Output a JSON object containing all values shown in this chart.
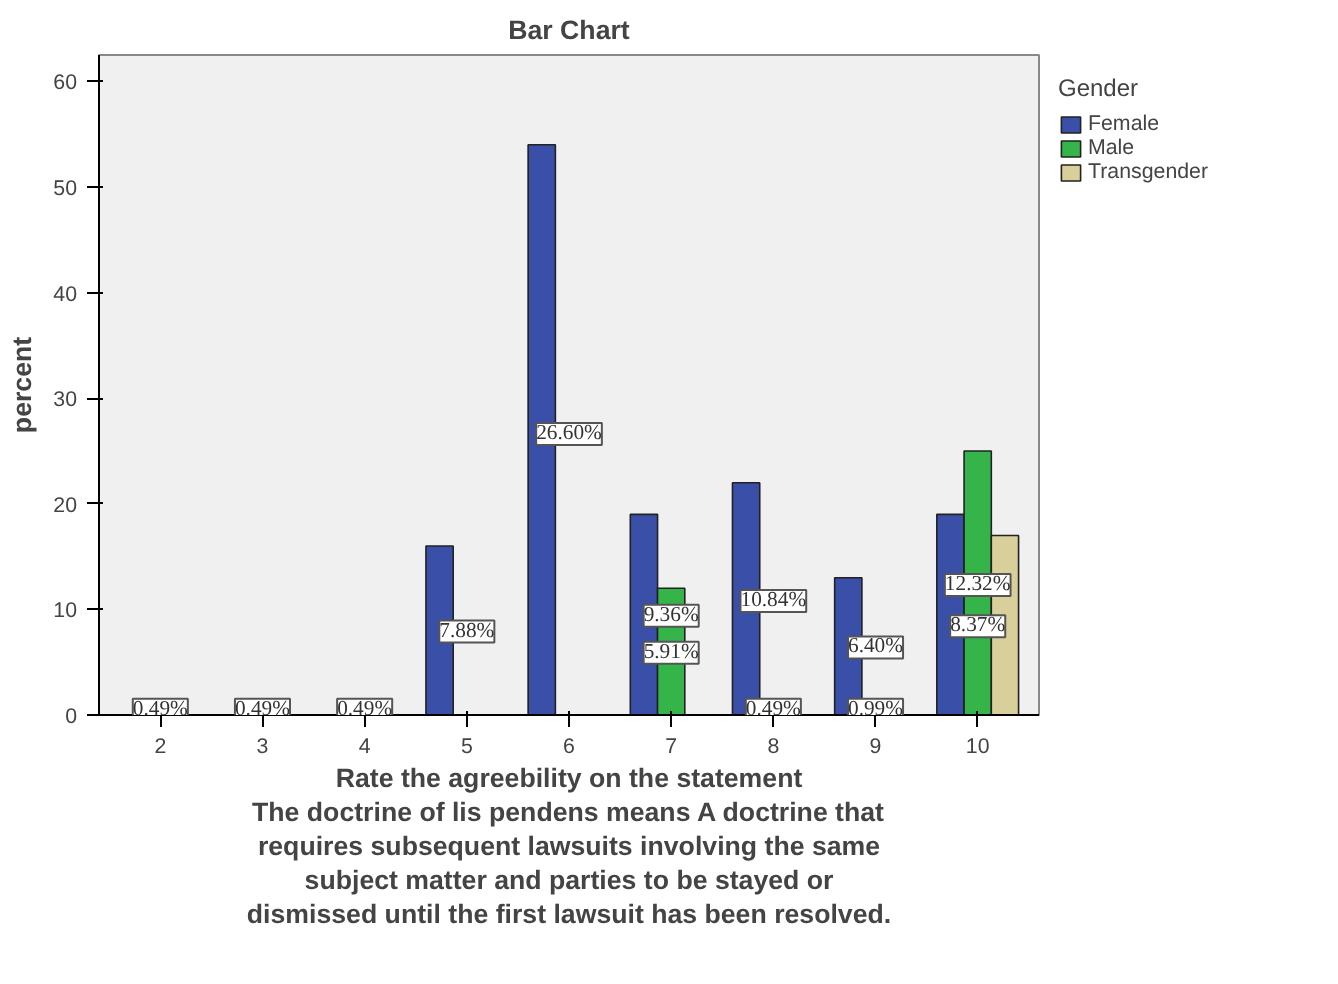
{
  "chart_data": {
    "type": "bar",
    "title": "Bar Chart",
    "xlabel": "Rate the agreebility on the statement\nThe doctrine of lis pendens means A doctrine that\nrequires subsequent lawsuits involving the same\nsubject matter and parties to be stayed or\ndismissed until the first lawsuit has been resolved.",
    "ylabel": "percent",
    "legend_title": "Gender",
    "categories": [
      "2",
      "3",
      "4",
      "5",
      "6",
      "7",
      "8",
      "9",
      "10"
    ],
    "series": [
      {
        "name": "Female",
        "color": "#3a4fa8",
        "values": [
          null,
          null,
          null,
          16,
          54,
          19,
          22,
          13,
          19
        ]
      },
      {
        "name": "Male",
        "color": "#35b549",
        "values": [
          null,
          null,
          null,
          null,
          null,
          12,
          null,
          null,
          25
        ]
      },
      {
        "name": "Transgender",
        "color": "#d9cf9a",
        "values": [
          null,
          null,
          null,
          null,
          null,
          null,
          null,
          null,
          17
        ]
      }
    ],
    "annotations": [
      {
        "text": "0.49%",
        "x": "2",
        "y": 0.5
      },
      {
        "text": "0.49%",
        "x": "3",
        "y": 0.5
      },
      {
        "text": "0.49%",
        "x": "4",
        "y": 0.5
      },
      {
        "text": "7.88%",
        "x": "5",
        "y": 7.9
      },
      {
        "text": "26.60%",
        "x": "6",
        "y": 26.6
      },
      {
        "text": "9.36%",
        "x": "7",
        "y": 9.4
      },
      {
        "text": "5.91%",
        "x": "7",
        "y": 5.9
      },
      {
        "text": "10.84%",
        "x": "8",
        "y": 10.8
      },
      {
        "text": "0.49%",
        "x": "8",
        "y": 0.5
      },
      {
        "text": "6.40%",
        "x": "9",
        "y": 6.4
      },
      {
        "text": "0.99%",
        "x": "9",
        "y": 0.5
      },
      {
        "text": "12.32%",
        "x": "10",
        "y": 12.3
      },
      {
        "text": "8.37%",
        "x": "10",
        "y": 8.4
      }
    ],
    "ylim": [
      0,
      62.5
    ],
    "yticks": [
      0,
      10,
      20,
      30,
      40,
      50,
      60
    ],
    "grid": false,
    "legend": "top right"
  }
}
